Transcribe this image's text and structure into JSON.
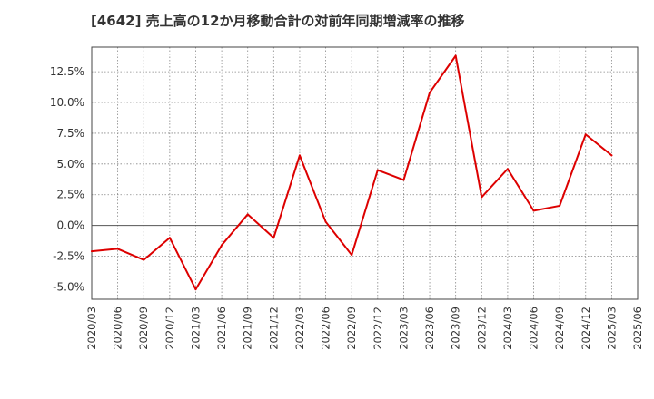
{
  "chart_data": {
    "type": "line",
    "title": "[4642]  売上高の12か月移動合計の対前年同期増減率の推移",
    "xlabel": "",
    "ylabel": "",
    "ylim": [
      -6.0,
      14.5
    ],
    "yticks": [
      {
        "value": 12.5,
        "label": "12.5%"
      },
      {
        "value": 10.0,
        "label": "10.0%"
      },
      {
        "value": 7.5,
        "label": "7.5%"
      },
      {
        "value": 5.0,
        "label": "5.0%"
      },
      {
        "value": 2.5,
        "label": "2.5%"
      },
      {
        "value": 0.0,
        "label": "0.0%"
      },
      {
        "value": -2.5,
        "label": "-2.5%"
      },
      {
        "value": -5.0,
        "label": "-5.0%"
      }
    ],
    "categories": [
      "2020/03",
      "2020/06",
      "2020/09",
      "2020/12",
      "2021/03",
      "2021/06",
      "2021/09",
      "2021/12",
      "2022/03",
      "2022/06",
      "2022/09",
      "2022/12",
      "2023/03",
      "2023/06",
      "2023/09",
      "2023/12",
      "2024/03",
      "2024/06",
      "2024/09",
      "2024/12",
      "2025/03",
      "2025/06"
    ],
    "grid": true,
    "series": [
      {
        "name": "増減率",
        "color": "#dd0000",
        "values": [
          -2.1,
          -1.9,
          -2.8,
          -1.0,
          -5.2,
          -1.6,
          0.9,
          -1.0,
          5.7,
          0.3,
          -2.4,
          4.5,
          3.7,
          10.8,
          13.8,
          2.3,
          4.6,
          1.2,
          1.6,
          7.4,
          5.7,
          null
        ]
      }
    ]
  }
}
